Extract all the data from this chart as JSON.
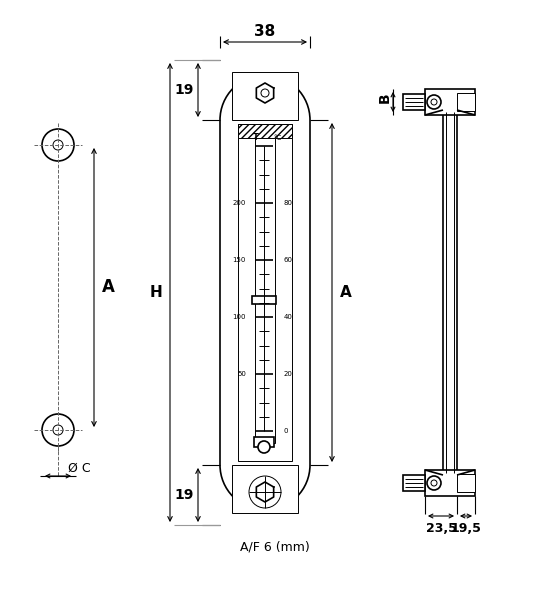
{
  "bg_color": "#ffffff",
  "lc": "#000000",
  "lw": 1.2,
  "tlw": 0.7,
  "dlw": 0.8,
  "dim_38": "38",
  "dim_19": "19",
  "dim_A": "A",
  "dim_H": "H",
  "dim_B": "B",
  "dim_af": "A/F 6 (mm)",
  "dim_C": "Ø C",
  "dim_23_5": "23,5",
  "dim_19_5": "19,5"
}
